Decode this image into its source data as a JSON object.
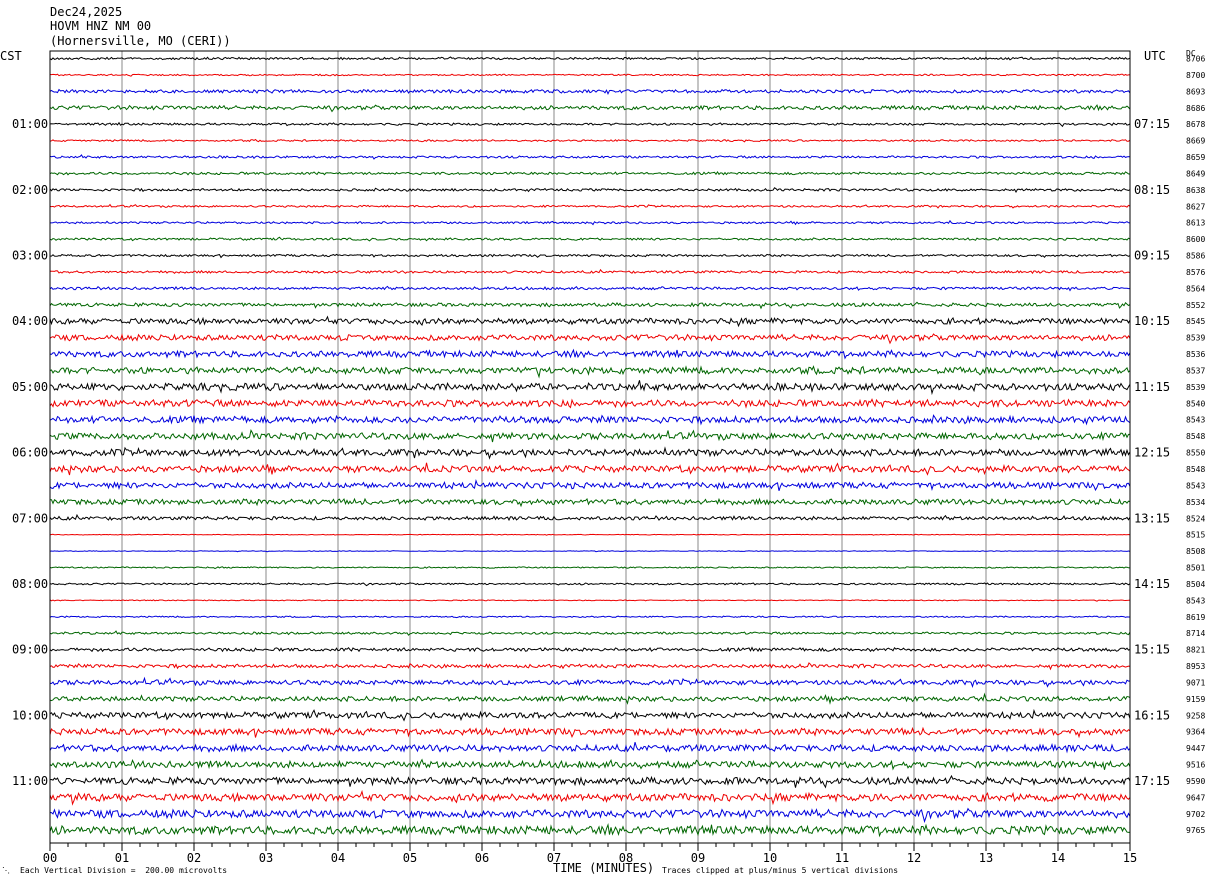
{
  "header": {
    "date": "Dec24,2025",
    "station": "HOVM HNZ NM 00",
    "location": "(Hornersville, MO (CERI))"
  },
  "left_tz": "CST",
  "right_tz": "UTC",
  "dc_label": "DC",
  "footer": {
    "scale_note": "Each Vertical Division =  200.00 microvolts",
    "x_title": "TIME (MINUTES)",
    "clip_note": "Traces clipped at plus/minus 5 vertical divisions"
  },
  "colors": {
    "black": "#000000",
    "red": "#ee0000",
    "blue": "#0000dd",
    "green": "#006600",
    "grid": "#888888"
  },
  "chart_data": {
    "type": "line",
    "title": "HOVM HNZ NM 00",
    "xlabel": "TIME (MINUTES)",
    "ylabel": "",
    "xlim": [
      0,
      15
    ],
    "x_ticks": [
      "00",
      "01",
      "02",
      "03",
      "04",
      "05",
      "06",
      "07",
      "08",
      "09",
      "10",
      "11",
      "12",
      "13",
      "14",
      "15"
    ],
    "color_cycle": [
      "black",
      "red",
      "blue",
      "green"
    ],
    "left_time_labels": [
      "01:00",
      "02:00",
      "03:00",
      "04:00",
      "05:00",
      "06:00",
      "07:00",
      "08:00",
      "09:00",
      "10:00",
      "11:00"
    ],
    "right_time_labels": [
      "07:15",
      "08:15",
      "09:15",
      "10:15",
      "11:15",
      "12:15",
      "13:15",
      "14:15",
      "15:15",
      "16:15",
      "17:15"
    ],
    "dc_offsets": [
      "8706",
      "8700",
      "8693",
      "8686",
      "8678",
      "8669",
      "8659",
      "8649",
      "8638",
      "8627",
      "8613",
      "8600",
      "8586",
      "8576",
      "8564",
      "8552",
      "8545",
      "8539",
      "8536",
      "8537",
      "8539",
      "8540",
      "8543",
      "8548",
      "8550",
      "8548",
      "8543",
      "8534",
      "8524",
      "8515",
      "8508",
      "8501",
      "8504",
      "8543",
      "8619",
      "8714",
      "8821",
      "8953",
      "9071",
      "9159",
      "9258",
      "9364",
      "9447",
      "9516",
      "9590",
      "9647",
      "9702",
      "9765"
    ],
    "trace_amplitude": [
      1.0,
      0.7,
      1.5,
      1.8,
      1.0,
      0.8,
      1.0,
      1.1,
      1.1,
      0.9,
      0.9,
      1.0,
      1.0,
      1.1,
      1.2,
      1.6,
      2.6,
      2.6,
      2.8,
      3.0,
      3.2,
      3.1,
      3.0,
      3.0,
      3.0,
      3.0,
      2.8,
      2.5,
      1.6,
      0.3,
      0.3,
      0.6,
      0.8,
      0.4,
      0.6,
      1.0,
      1.5,
      1.6,
      2.2,
      2.2,
      2.8,
      3.0,
      3.0,
      3.0,
      3.2,
      3.4,
      3.6,
      3.8
    ]
  }
}
